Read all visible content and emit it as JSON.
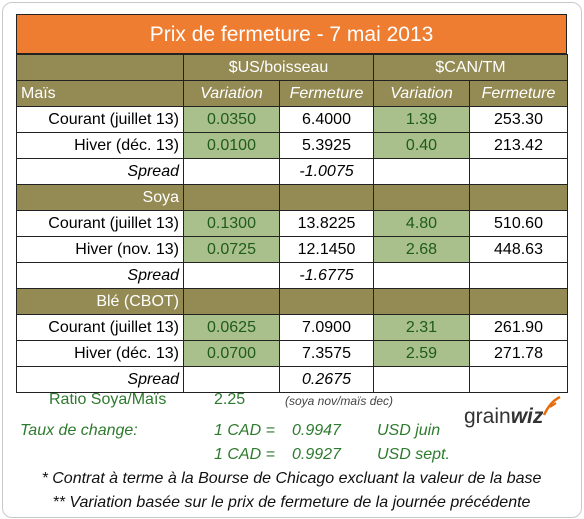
{
  "title": "Prix de fermeture - 7 mai 2013",
  "header": {
    "us_group": "$US/boisseau",
    "can_group": "$CAN/TM",
    "first_label": "Maïs",
    "variation": "Variation",
    "fermeture": "Fermeture"
  },
  "sections": [
    {
      "name": "Maïs",
      "rows": [
        {
          "label": "Courant (juillet 13)",
          "us_var": "0.0350",
          "us_close": "6.4000",
          "can_var": "1.39",
          "can_close": "253.30"
        },
        {
          "label": "Hiver (déc. 13)",
          "us_var": "0.0100",
          "us_close": "5.3925",
          "can_var": "0.40",
          "can_close": "213.42"
        }
      ],
      "spread_label": "Spread",
      "spread_value": "-1.0075"
    },
    {
      "name": "Soya",
      "rows": [
        {
          "label": "Courant (juillet 13)",
          "us_var": "0.1300",
          "us_close": "13.8225",
          "can_var": "4.80",
          "can_close": "510.60"
        },
        {
          "label": "Hiver (nov. 13)",
          "us_var": "0.0725",
          "us_close": "12.1450",
          "can_var": "2.68",
          "can_close": "448.63"
        }
      ],
      "spread_label": "Spread",
      "spread_value": "-1.6775"
    },
    {
      "name": "Blé (CBOT)",
      "rows": [
        {
          "label": "Courant (juillet 13)",
          "us_var": "0.0625",
          "us_close": "7.0900",
          "can_var": "2.31",
          "can_close": "261.90"
        },
        {
          "label": "Hiver (déc. 13)",
          "us_var": "0.0700",
          "us_close": "7.3575",
          "can_var": "2.59",
          "can_close": "271.78"
        }
      ],
      "spread_label": "Spread",
      "spread_value": "0.2675"
    }
  ],
  "ratio": {
    "label": "Ratio Soya/Maïs",
    "value": "2.25",
    "note": "(soya nov/maïs dec)"
  },
  "exchange": {
    "label": "Taux de change:",
    "rates": [
      {
        "cad": "1 CAD =",
        "value": "0.9947",
        "usd": "USD juin"
      },
      {
        "cad": "1 CAD =",
        "value": "0.9927",
        "usd": "USD sept."
      }
    ]
  },
  "logo": {
    "part1": "grain",
    "part2": "wiz"
  },
  "footnotes": [
    "* Contrat à terme à la Bourse de Chicago excluant la valeur de la base",
    "** Variation basée sur le prix de fermeture de la journée précédente"
  ],
  "colors": {
    "title_bg": "#ee7d31",
    "section_bg": "#948a54",
    "highlight": "#a9c08c"
  }
}
